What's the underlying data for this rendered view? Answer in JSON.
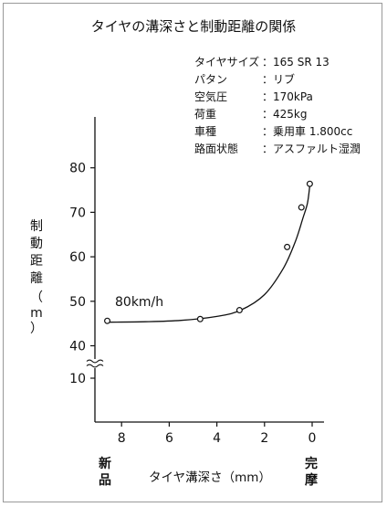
{
  "chart_data": {
    "type": "line",
    "title": "タイヤの溝深さと制動距離の関係",
    "specs": [
      {
        "label": "タイヤサイズ",
        "value": "：165 SR 13"
      },
      {
        "label": "パタン",
        "value": "：リブ"
      },
      {
        "label": "空気圧",
        "value": "：170kPa"
      },
      {
        "label": "荷重",
        "value": "：425kg"
      },
      {
        "label": "車種",
        "value": "：乗用車 1.800cc"
      },
      {
        "label": "路面状態",
        "value": "：アスファルト湿潤"
      }
    ],
    "xlabel": "タイヤ溝深さ（mm）",
    "ylabel_chars": [
      "制",
      "動",
      "距",
      "離",
      "（",
      "m",
      "）"
    ],
    "x_ticks": [
      "8",
      "6",
      "4",
      "2",
      "0"
    ],
    "y_ticks": [
      "80",
      "70",
      "60",
      "50",
      "40",
      "10"
    ],
    "x_end_left": [
      "新",
      "品"
    ],
    "x_end_right": [
      "完",
      "摩"
    ],
    "annotation": "80km/h",
    "x_reversed": true,
    "xlim": [
      0,
      9
    ],
    "ylim": [
      35,
      85
    ],
    "y_axis_break": "between 40 and 10",
    "series": [
      {
        "points": [
          {
            "x": 8.6,
            "y": 45.6
          },
          {
            "x": 4.7,
            "y": 46.0
          },
          {
            "x": 3.05,
            "y": 48.0
          },
          {
            "x": 1.05,
            "y": 62.2
          },
          {
            "x": 0.45,
            "y": 71.1
          },
          {
            "x": 0.1,
            "y": 76.4
          }
        ],
        "curve": [
          {
            "x": 8.6,
            "y": 45.3
          },
          {
            "x": 7.0,
            "y": 45.4
          },
          {
            "x": 5.5,
            "y": 45.7
          },
          {
            "x": 4.0,
            "y": 46.6
          },
          {
            "x": 3.0,
            "y": 48.0
          },
          {
            "x": 2.0,
            "y": 51.5
          },
          {
            "x": 1.2,
            "y": 57.5
          },
          {
            "x": 0.7,
            "y": 63.5
          },
          {
            "x": 0.4,
            "y": 68.5
          },
          {
            "x": 0.2,
            "y": 72.0
          },
          {
            "x": 0.1,
            "y": 76.0
          }
        ]
      }
    ]
  }
}
